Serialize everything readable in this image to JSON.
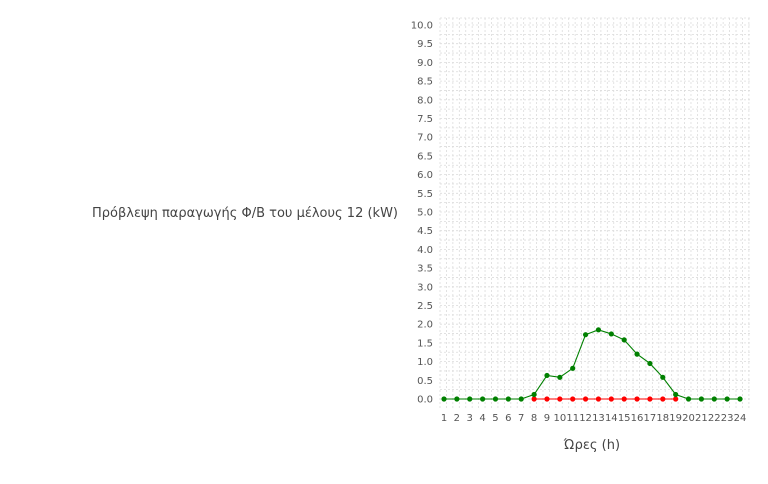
{
  "chart_data": {
    "type": "line",
    "title": "",
    "xlabel": "Ώρες (h)",
    "ylabel": "Πρόβλεψη παραγωγής Φ/Β του μέλους 12 (kW)",
    "x": [
      1,
      2,
      3,
      4,
      5,
      6,
      7,
      8,
      9,
      10,
      11,
      12,
      13,
      14,
      15,
      16,
      17,
      18,
      19,
      20,
      21,
      22,
      23,
      24
    ],
    "x_tick_labels": [
      "1",
      "2",
      "3",
      "4",
      "5",
      "6",
      "7",
      "8",
      "9",
      "10",
      "11",
      "12",
      "13",
      "14",
      "15",
      "16",
      "17",
      "18",
      "19",
      "20",
      "21",
      "22",
      "23",
      "24"
    ],
    "ylim": [
      0,
      10
    ],
    "y_tick_labels": [
      "0.0",
      "0.5",
      "1.0",
      "1.5",
      "2.0",
      "2.5",
      "3.0",
      "3.5",
      "4.0",
      "4.5",
      "5.0",
      "5.5",
      "6.0",
      "6.5",
      "7.0",
      "7.5",
      "8.0",
      "8.5",
      "9.0",
      "9.5",
      "10.0"
    ],
    "grid": true,
    "series": [
      {
        "color": "#ff0000",
        "values": [
          null,
          null,
          null,
          null,
          null,
          null,
          null,
          0,
          0,
          0,
          0,
          0,
          0,
          0,
          0,
          0,
          0,
          0,
          0,
          null,
          null,
          null,
          null,
          null
        ]
      },
      {
        "color": "#008000",
        "values": [
          0,
          0,
          0,
          0,
          0,
          0,
          0,
          0.12,
          0.63,
          0.58,
          0.82,
          1.72,
          1.85,
          1.74,
          1.58,
          1.2,
          0.95,
          0.58,
          0.12,
          0,
          0,
          0,
          0,
          0
        ]
      }
    ]
  }
}
